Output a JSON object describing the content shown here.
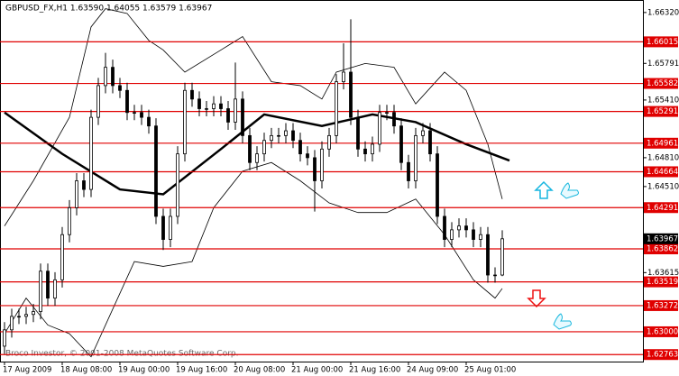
{
  "chart_data": {
    "type": "candlestick",
    "title": "GBPUSD_FX,H1  1.63590 1.64055 1.63579 1.63967",
    "copyright": "Broco Investor, © 2001-2008 MetaQuotes Software Corp.",
    "categories": [
      "17 Aug 2009",
      null,
      null,
      null,
      null,
      null,
      null,
      null,
      "18 Aug 08:00",
      null,
      null,
      null,
      null,
      null,
      null,
      null,
      "19 Aug 00:00",
      null,
      null,
      null,
      null,
      null,
      null,
      null,
      "19 Aug 16:00",
      null,
      null,
      null,
      null,
      null,
      null,
      null,
      "20 Aug 08:00",
      null,
      null,
      null,
      null,
      null,
      null,
      null,
      "21 Aug 00:00",
      null,
      null,
      null,
      null,
      null,
      null,
      null,
      "21 Aug 16:00",
      null,
      null,
      null,
      null,
      null,
      null,
      null,
      "24 Aug 09:00",
      null,
      null,
      null,
      null,
      null,
      null,
      null,
      "25 Aug 01:00",
      null,
      null,
      null,
      null,
      null
    ],
    "open": [
      1.6285,
      1.6302,
      1.6316,
      1.6316,
      1.6318,
      1.6321,
      1.6363,
      1.6335,
      1.6354,
      1.6401,
      1.6429,
      1.6457,
      1.6448,
      1.6523,
      1.6556,
      1.6575,
      1.6556,
      1.6551,
      1.6528,
      1.6528,
      1.6523,
      1.6514,
      1.642,
      1.6396,
      1.642,
      1.6485,
      1.6551,
      1.6542,
      1.6532,
      1.6532,
      1.6537,
      1.6532,
      1.6518,
      1.6542,
      1.6504,
      1.6476,
      1.6485,
      1.6499,
      1.6504,
      1.6504,
      1.6509,
      1.6499,
      1.6485,
      1.6481,
      1.6457,
      1.649,
      1.6504,
      1.656,
      1.657,
      1.6523,
      1.649,
      1.6485,
      1.6495,
      1.6528,
      1.6528,
      1.6514,
      1.6476,
      1.6457,
      1.6504,
      1.6509,
      1.6485,
      1.642,
      1.6396,
      1.6406,
      1.641,
      1.6406,
      1.6396,
      1.6401,
      1.6359,
      1.6359
    ],
    "high": [
      1.631,
      1.6324,
      1.6324,
      1.6326,
      1.6329,
      1.6371,
      1.6371,
      1.6362,
      1.6409,
      1.6437,
      1.6465,
      1.6465,
      1.6531,
      1.6564,
      1.659,
      1.6583,
      1.6564,
      1.6559,
      1.6536,
      1.6536,
      1.6531,
      1.6522,
      1.6428,
      1.6428,
      1.6493,
      1.6559,
      1.6559,
      1.655,
      1.654,
      1.6545,
      1.6545,
      1.654,
      1.658,
      1.655,
      1.6512,
      1.6493,
      1.6507,
      1.6512,
      1.6512,
      1.6517,
      1.6517,
      1.6507,
      1.6493,
      1.6489,
      1.6498,
      1.6512,
      1.6568,
      1.66,
      1.6625,
      1.6531,
      1.6498,
      1.6503,
      1.6536,
      1.6536,
      1.6536,
      1.6522,
      1.6484,
      1.6512,
      1.6517,
      1.6517,
      1.6493,
      1.6428,
      1.6414,
      1.6418,
      1.6418,
      1.6414,
      1.6409,
      1.6409,
      1.6367,
      1.64055
    ],
    "low": [
      1.6277,
      1.6294,
      1.6308,
      1.6308,
      1.631,
      1.6313,
      1.6327,
      1.6327,
      1.6346,
      1.6393,
      1.6421,
      1.644,
      1.644,
      1.6515,
      1.6548,
      1.6548,
      1.6543,
      1.652,
      1.652,
      1.6515,
      1.6506,
      1.6412,
      1.6385,
      1.6388,
      1.6412,
      1.6477,
      1.6534,
      1.6524,
      1.6524,
      1.6524,
      1.6524,
      1.651,
      1.651,
      1.6496,
      1.6468,
      1.6468,
      1.6477,
      1.6491,
      1.6496,
      1.6496,
      1.6491,
      1.6477,
      1.6473,
      1.6425,
      1.6449,
      1.6482,
      1.6496,
      1.6552,
      1.6515,
      1.6482,
      1.6477,
      1.6477,
      1.6487,
      1.652,
      1.6506,
      1.6468,
      1.6449,
      1.6449,
      1.6496,
      1.6477,
      1.6412,
      1.6388,
      1.6388,
      1.6398,
      1.6398,
      1.6388,
      1.6388,
      1.6351,
      1.6351,
      1.63579
    ],
    "close": [
      1.6302,
      1.6316,
      1.6316,
      1.6318,
      1.6321,
      1.6363,
      1.6335,
      1.6354,
      1.6401,
      1.6429,
      1.6457,
      1.6448,
      1.6523,
      1.6556,
      1.6575,
      1.6556,
      1.6551,
      1.6528,
      1.6528,
      1.6523,
      1.6514,
      1.642,
      1.6396,
      1.642,
      1.6485,
      1.6551,
      1.6542,
      1.6532,
      1.6532,
      1.6537,
      1.6532,
      1.6518,
      1.6542,
      1.6504,
      1.6476,
      1.6485,
      1.6499,
      1.6504,
      1.6504,
      1.6509,
      1.6499,
      1.6485,
      1.6481,
      1.6457,
      1.649,
      1.6504,
      1.656,
      1.657,
      1.6523,
      1.649,
      1.6485,
      1.6495,
      1.6528,
      1.6528,
      1.6514,
      1.6476,
      1.6457,
      1.6504,
      1.6509,
      1.6485,
      1.642,
      1.6396,
      1.6406,
      1.641,
      1.6406,
      1.6396,
      1.6401,
      1.6359,
      1.6359,
      1.63967
    ],
    "overlays": [
      {
        "color": "#000000",
        "width": 2.5,
        "x": [
          0,
          8,
          16,
          22,
          30,
          36,
          44,
          51,
          57,
          64,
          70
        ],
        "values": [
          1.6528,
          1.6485,
          1.6448,
          1.6443,
          1.649,
          1.6526,
          1.6514,
          1.6526,
          1.6518,
          1.6495,
          1.6478
        ]
      },
      {
        "color": "#000000",
        "width": 0.8,
        "x": [
          0,
          4,
          9,
          12,
          14,
          17,
          20,
          22,
          25,
          30,
          33,
          37,
          41,
          44,
          46,
          50,
          54,
          57,
          61,
          64,
          67,
          69
        ],
        "values": [
          1.641,
          1.6457,
          1.6523,
          1.6617,
          1.6636,
          1.6631,
          1.6603,
          1.6593,
          1.657,
          1.6593,
          1.6607,
          1.656,
          1.6556,
          1.6542,
          1.657,
          1.6579,
          1.6575,
          1.6537,
          1.657,
          1.6551,
          1.6495,
          1.6438
        ]
      },
      {
        "color": "#000000",
        "width": 0.8,
        "x": [
          0,
          3,
          6,
          9,
          12,
          18,
          22,
          26,
          29,
          33,
          37,
          41,
          45,
          49,
          53,
          57,
          61,
          65,
          68,
          69
        ],
        "values": [
          1.6298,
          1.6335,
          1.6307,
          1.6298,
          1.6274,
          1.6373,
          1.6368,
          1.6373,
          1.6429,
          1.6467,
          1.6476,
          1.6457,
          1.6434,
          1.6424,
          1.6424,
          1.6438,
          1.6401,
          1.6354,
          1.6335,
          1.6345
        ]
      }
    ],
    "ylim": [
      1.6269,
      1.6645
    ],
    "yticks": [
      {
        "value": 1.6632,
        "label": "1.66320"
      },
      1.65791,
      {
        "value": 1.6541,
        "label": "1.65410"
      },
      {
        "value": 1.6481,
        "label": "1.64810"
      },
      {
        "value": 1.6451,
        "label": "1.64510"
      },
      1.63615
    ],
    "levels": [
      1.66015,
      1.65582,
      1.65291,
      1.64961,
      1.64664,
      1.64291,
      1.63862,
      1.63519,
      1.63272,
      {
        "value": 1.63,
        "label": "1.63000"
      },
      1.62763
    ],
    "level_color": "#e00000"
  }
}
